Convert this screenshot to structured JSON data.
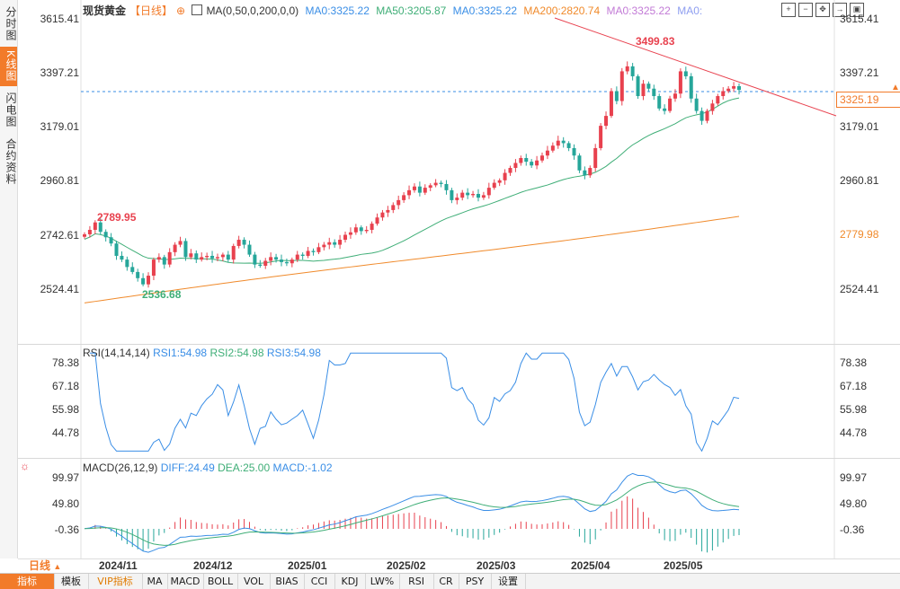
{
  "left_tabs": [
    {
      "label": "分时图",
      "active": false
    },
    {
      "label": "K线图",
      "active": true
    },
    {
      "label": "闪电图",
      "active": false
    },
    {
      "label": "合约资料",
      "active": false
    }
  ],
  "legend": {
    "symbol": "现货黄金",
    "period": "【日线】",
    "ma_params": "MA(0,50,0,200,0,0)",
    "items": [
      {
        "text": "MA0:3325.22",
        "color": "#3a8ee6"
      },
      {
        "text": "MA50:3205.87",
        "color": "#3fae77"
      },
      {
        "text": "MA0:3325.22",
        "color": "#3a8ee6"
      },
      {
        "text": "MA200:2820.74",
        "color": "#f08a2b"
      },
      {
        "text": "MA0:3325.22",
        "color": "#c27ad6"
      },
      {
        "text": "MA0:",
        "color": "#8e9ef0"
      }
    ]
  },
  "price_axis": {
    "labels": [
      "3615.41",
      "3397.21",
      "3179.01",
      "2960.81",
      "2742.61",
      "2524.41"
    ],
    "ma200_label": "2779.98",
    "current_price": "3325.19"
  },
  "price_markers": {
    "high": "3499.83",
    "low": "2536.68",
    "early_high": "2789.95"
  },
  "rsi": {
    "title": "RSI(14,14,14)",
    "rsi1": "RSI1:54.98",
    "rsi2": "RSI2:54.98",
    "rsi3": "RSI3:54.98",
    "axis": [
      "78.38",
      "67.18",
      "55.98",
      "44.78"
    ]
  },
  "macd": {
    "title": "MACD(26,12,9)",
    "diff": "DIFF:24.49",
    "dea": "DEA:25.00",
    "macd": "MACD:-1.02",
    "axis": [
      "99.97",
      "49.80",
      "-0.36"
    ]
  },
  "time_axis": {
    "period": "日线",
    "dates": [
      "2024/11",
      "2024/12",
      "2025/01",
      "2025/02",
      "2025/03",
      "2025/04",
      "2025/05"
    ]
  },
  "bottom_tabs": [
    {
      "label": "指标",
      "active": true
    },
    {
      "label": "模板"
    },
    {
      "label": "VIP指标",
      "vip": true
    },
    {
      "label": "MA"
    },
    {
      "label": "MACD"
    },
    {
      "label": "BOLL"
    },
    {
      "label": "VOL"
    },
    {
      "label": "BIAS"
    },
    {
      "label": "CCI"
    },
    {
      "label": "KDJ"
    },
    {
      "label": "LW%"
    },
    {
      "label": "RSI"
    },
    {
      "label": "CR"
    },
    {
      "label": "PSY"
    },
    {
      "label": "设置"
    }
  ],
  "colors": {
    "up": "#e8414e",
    "down": "#26a69a",
    "accent": "#f27b2a"
  },
  "chart_data": {
    "type": "candlestick",
    "symbol": "现货黄金",
    "ylim": [
      2440,
      3660
    ],
    "close_series": [
      2742,
      2760,
      2790,
      2752,
      2730,
      2705,
      2655,
      2640,
      2610,
      2590,
      2565,
      2540,
      2575,
      2640,
      2650,
      2620,
      2670,
      2700,
      2715,
      2650,
      2665,
      2640,
      2650,
      2655,
      2645,
      2650,
      2660,
      2640,
      2695,
      2720,
      2700,
      2660,
      2620,
      2615,
      2635,
      2650,
      2640,
      2630,
      2625,
      2640,
      2660,
      2655,
      2675,
      2670,
      2690,
      2700,
      2710,
      2700,
      2720,
      2740,
      2750,
      2770,
      2755,
      2760,
      2785,
      2810,
      2830,
      2840,
      2860,
      2880,
      2900,
      2920,
      2935,
      2910,
      2930,
      2940,
      2950,
      2945,
      2920,
      2880,
      2890,
      2910,
      2900,
      2905,
      2890,
      2900,
      2930,
      2950,
      2960,
      2990,
      3010,
      3030,
      3050,
      3035,
      3020,
      3040,
      3060,
      3080,
      3100,
      3120,
      3110,
      3090,
      3060,
      3000,
      2980,
      3010,
      3090,
      3180,
      3220,
      3320,
      3280,
      3400,
      3420,
      3380,
      3300,
      3350,
      3330,
      3300,
      3250,
      3240,
      3290,
      3310,
      3400,
      3380,
      3290,
      3240,
      3200,
      3240,
      3270,
      3300,
      3320,
      3330,
      3340,
      3325
    ]
  },
  "toolbar_icons": [
    "zoom-in-icon",
    "zoom-out-icon",
    "move-icon",
    "move-right-icon",
    "fullscreen-icon"
  ]
}
